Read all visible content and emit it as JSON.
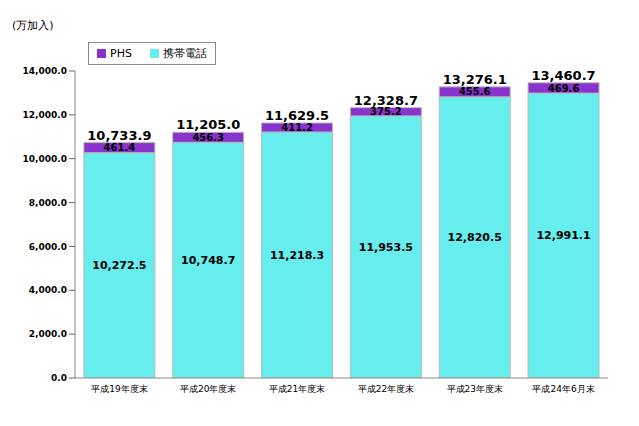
{
  "chart_data": {
    "type": "bar",
    "stacked": true,
    "data_labels": true,
    "grid": false,
    "legend": "top-left",
    "y_label": "(万加入)",
    "categories": [
      "平成19年度末",
      "平成20年度末",
      "平成21年度末",
      "平成22年度末",
      "平成23年度末",
      "平成24年6月末"
    ],
    "series": [
      {
        "name": "携帯電話",
        "color": "#66eeee",
        "values": [
          10272.5,
          10748.7,
          11218.3,
          11953.5,
          12820.5,
          12991.1
        ],
        "value_labels": [
          "10,272.5",
          "10,748.7",
          "11,218.3",
          "11,953.5",
          "12,820.5",
          "12,991.1"
        ]
      },
      {
        "name": "PHS",
        "color": "#8833cc",
        "values": [
          461.4,
          456.3,
          411.2,
          375.2,
          455.6,
          469.6
        ],
        "value_labels": [
          "461.4",
          "456.3",
          "411.2",
          "375.2",
          "455.6",
          "469.6"
        ]
      }
    ],
    "totals": {
      "values": [
        10733.9,
        11205.0,
        11629.5,
        12328.7,
        13276.1,
        13460.7
      ],
      "value_labels": [
        "10,733.9",
        "11,205.0",
        "11,629.5",
        "12,328.7",
        "13,276.1",
        "13,460.7"
      ]
    },
    "ylim": [
      0,
      14000
    ],
    "yticks": [
      {
        "value": 0,
        "label": "0.0"
      },
      {
        "value": 2000,
        "label": "2,000.0"
      },
      {
        "value": 4000,
        "label": "4,000.0"
      },
      {
        "value": 6000,
        "label": "6,000.0"
      },
      {
        "value": 8000,
        "label": "8,000.0"
      },
      {
        "value": 10000,
        "label": "10,000.0"
      },
      {
        "value": 12000,
        "label": "12,000.0"
      },
      {
        "value": 14000,
        "label": "14,000.0"
      }
    ]
  }
}
